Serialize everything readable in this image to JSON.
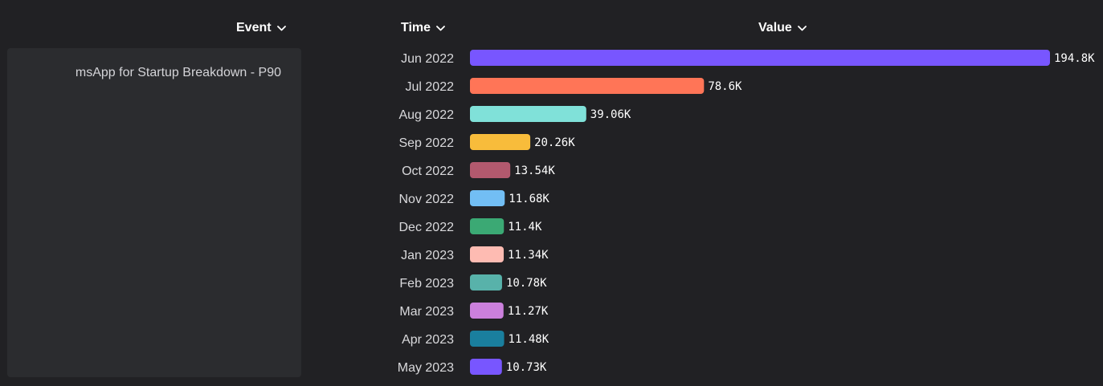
{
  "headers": {
    "event": "Event",
    "time": "Time",
    "value": "Value"
  },
  "icons": {
    "header_sort": "chevron-down-icon"
  },
  "event": {
    "label": "msApp for Startup Breakdown - P90"
  },
  "chart_data": {
    "type": "bar",
    "orientation": "horizontal",
    "categories": [
      "Jun 2022",
      "Jul 2022",
      "Aug 2022",
      "Sep 2022",
      "Oct 2022",
      "Nov 2022",
      "Dec 2022",
      "Jan 2023",
      "Feb 2023",
      "Mar 2023",
      "Apr 2023",
      "May 2023"
    ],
    "values": [
      194800,
      78600,
      39060,
      20260,
      13540,
      11680,
      11400,
      11340,
      10780,
      11270,
      11480,
      10730
    ],
    "value_labels": [
      "194.8K",
      "78.6K",
      "39.06K",
      "20.26K",
      "13.54K",
      "11.68K",
      "11.4K",
      "11.34K",
      "10.78K",
      "11.27K",
      "11.48K",
      "10.73K"
    ],
    "colors": [
      "#7856ff",
      "#ff7557",
      "#80e1d9",
      "#f8bc3b",
      "#b2596e",
      "#72bef4",
      "#3ba974",
      "#febbb2",
      "#58b2aa",
      "#cb80dc",
      "#1a7f9e",
      "#7856ff"
    ],
    "xlim": [
      0,
      194800
    ],
    "grid": false,
    "legend": "none"
  }
}
